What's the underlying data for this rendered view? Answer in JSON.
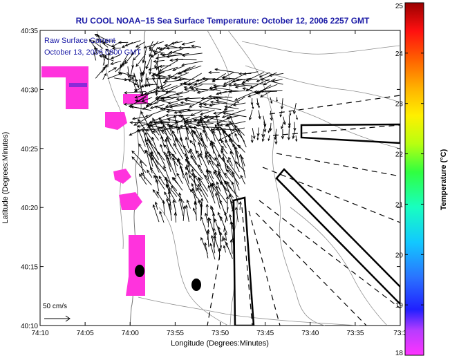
{
  "title": "RU COOL  NOAA−15  Sea Surface Temperature:  October 12, 2006 2257 GMT",
  "legend": {
    "line1": "Raw Surface Current",
    "line2": "October 13, 2006 0800 GMT"
  },
  "scale_label": "50 cm/s",
  "colors": {
    "title": "#1a1aa6",
    "sst_patch": "#ff33dd",
    "sst_patch_dark": "#8a2bd8",
    "contour": "#8c8c8c",
    "vector": "#000000"
  },
  "chart_data": {
    "type": "map",
    "xlabel": "Longitude (Degrees:Minutes)",
    "ylabel": "Latitude (Degrees:Minutes)",
    "x_ticks": [
      "74:10",
      "74:05",
      "74:00",
      "73:55",
      "73:50",
      "73:45",
      "73:40",
      "73:35",
      "73:3"
    ],
    "y_ticks": [
      "40:35",
      "40:30",
      "40:25",
      "40:20",
      "40:15",
      "40:10"
    ],
    "xlim_minutes_west": [
      70,
      30
    ],
    "ylim_minutes_north": [
      10,
      35
    ],
    "colorbar": {
      "label": "Temperature (°C)",
      "ticks": [
        "25",
        "24",
        "23",
        "22",
        "21",
        "20",
        "19",
        "18"
      ],
      "range": [
        18,
        25
      ]
    },
    "sst_patches_min_deg": [
      {
        "lon_w": 67.5,
        "lat_n": 30.5,
        "temp": 18.2
      },
      {
        "lon_w": 65.0,
        "lat_n": 29.5,
        "temp": 18.2
      },
      {
        "lon_w": 63.0,
        "lat_n": 29.0,
        "temp": 18.3
      },
      {
        "lon_w": 61.5,
        "lat_n": 26.8,
        "temp": 18.2
      },
      {
        "lon_w": 59.0,
        "lat_n": 29.2,
        "temp": 18.2
      },
      {
        "lon_w": 61.0,
        "lat_n": 23.0,
        "temp": 18.2
      },
      {
        "lon_w": 61.5,
        "lat_n": 20.5,
        "temp": 18.2
      },
      {
        "lon_w": 59.5,
        "lat_n": 14.5,
        "temp": 18.2
      }
    ],
    "hf_sites_min_deg": [
      {
        "lon_w": 59.0,
        "lat_n": 14.6
      },
      {
        "lon_w": 52.0,
        "lat_n": 13.5
      }
    ]
  }
}
